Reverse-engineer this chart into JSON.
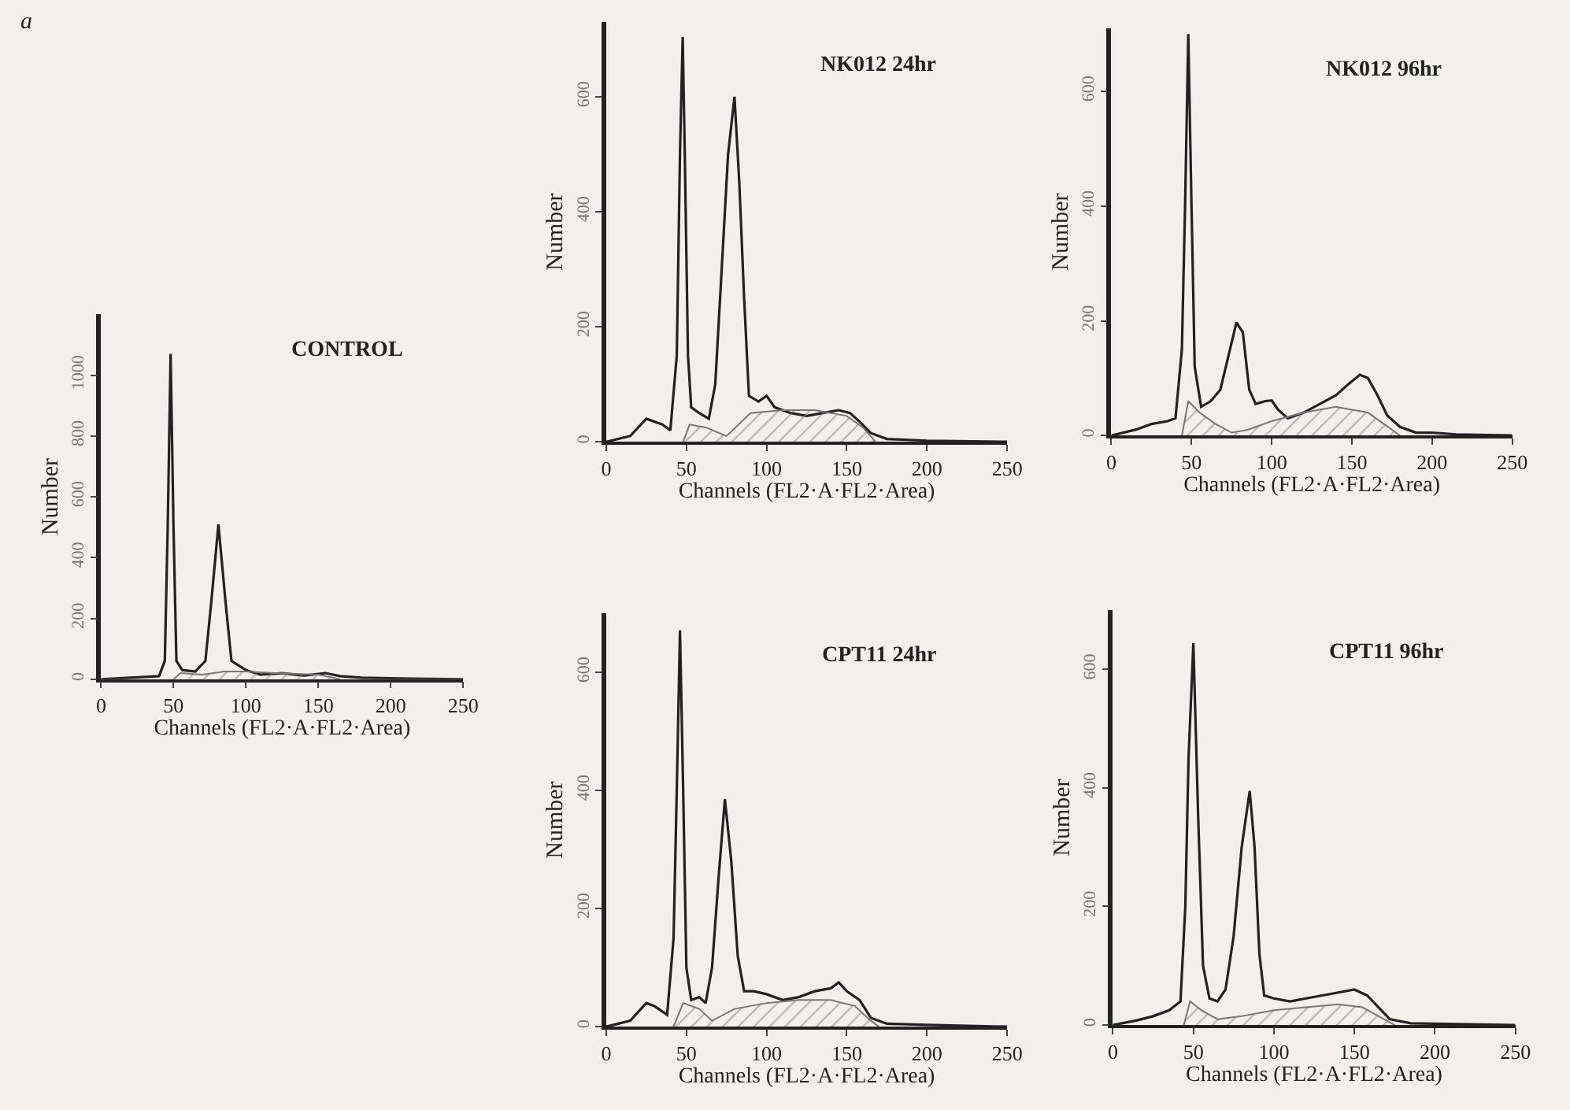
{
  "chart_data": [
    {
      "type": "line",
      "title": "CONTROL",
      "xlabel": "Channels (FL2·A·FL2·Area)",
      "ylabel": "Number",
      "annotations": [
        "a"
      ],
      "xlim": [
        0,
        250
      ],
      "xticks": [
        0,
        50,
        100,
        150,
        200,
        250
      ],
      "ylim": [
        0,
        1200
      ],
      "yticks": [
        0,
        200,
        400,
        600,
        800,
        1000
      ],
      "grid": false,
      "marker": "none",
      "line_style": "solid",
      "series": [
        {
          "color": "#222222",
          "x": [
            0,
            20,
            40,
            44,
            46,
            48,
            50,
            52,
            56,
            65,
            72,
            76,
            81,
            86,
            90,
            95,
            100,
            110,
            125,
            140,
            155,
            165,
            180,
            200,
            250
          ],
          "values": [
            0,
            5,
            10,
            60,
            500,
            1070,
            500,
            60,
            30,
            25,
            60,
            250,
            509,
            250,
            60,
            45,
            30,
            15,
            20,
            12,
            20,
            10,
            5,
            3,
            0
          ]
        },
        {
          "type": "area",
          "color": "#777777",
          "x": [
            50,
            55,
            70,
            85,
            100,
            120,
            150,
            165
          ],
          "values": [
            0,
            20,
            15,
            25,
            25,
            20,
            15,
            0
          ]
        }
      ]
    },
    {
      "type": "line",
      "title": "NK012 24hr",
      "xlabel": "Channels (FL2·A·FL2·Area)",
      "ylabel": "Number",
      "xlim": [
        0,
        250
      ],
      "xticks": [
        0,
        50,
        100,
        150,
        200,
        250
      ],
      "ylim": [
        0,
        730
      ],
      "yticks": [
        0,
        200,
        400,
        600
      ],
      "grid": false,
      "marker": "none",
      "line_style": "solid",
      "series": [
        {
          "color": "#222222",
          "x": [
            0,
            15,
            25,
            35,
            40,
            44,
            46,
            47.7,
            49,
            51,
            53,
            58,
            64,
            68,
            72,
            76,
            80,
            83,
            86,
            89,
            95,
            100,
            105,
            115,
            125,
            135,
            145,
            152,
            158,
            165,
            175,
            200,
            250
          ],
          "values": [
            0,
            10,
            40,
            30,
            20,
            150,
            500,
            704,
            500,
            150,
            60,
            50,
            40,
            100,
            300,
            500,
            600,
            450,
            250,
            80,
            70,
            80,
            60,
            50,
            45,
            50,
            55,
            50,
            35,
            15,
            5,
            2,
            0
          ]
        },
        {
          "type": "area",
          "color": "#777777",
          "x": [
            48,
            52,
            62,
            75,
            90,
            110,
            130,
            150,
            160,
            168
          ],
          "values": [
            0,
            30,
            25,
            10,
            50,
            55,
            55,
            45,
            25,
            0
          ]
        }
      ]
    },
    {
      "type": "line",
      "title": "NK012 96hr",
      "xlabel": "Channels (FL2·A·FL2·Area)",
      "ylabel": "Number",
      "xlim": [
        0,
        250
      ],
      "xticks": [
        0,
        50,
        100,
        150,
        200,
        250
      ],
      "ylim": [
        0,
        710
      ],
      "yticks": [
        0,
        200,
        400,
        600
      ],
      "grid": false,
      "marker": "none",
      "line_style": "solid",
      "series": [
        {
          "color": "#222222",
          "x": [
            0,
            15,
            25,
            35,
            40,
            44,
            46,
            48,
            50,
            52,
            56,
            62,
            68,
            74,
            78,
            82,
            86,
            90,
            96,
            100,
            104,
            110,
            120,
            130,
            140,
            148,
            155,
            160,
            166,
            172,
            180,
            190,
            200,
            215,
            250
          ],
          "values": [
            0,
            10,
            20,
            25,
            30,
            150,
            400,
            700,
            400,
            120,
            50,
            60,
            80,
            150,
            197,
            180,
            80,
            55,
            60,
            61,
            45,
            30,
            40,
            55,
            70,
            90,
            106,
            100,
            70,
            35,
            15,
            5,
            5,
            2,
            0
          ]
        },
        {
          "type": "area",
          "color": "#777777",
          "x": [
            44,
            48,
            55,
            65,
            75,
            85,
            100,
            120,
            140,
            150,
            160,
            170,
            180
          ],
          "values": [
            0,
            60,
            40,
            20,
            5,
            10,
            25,
            40,
            50,
            45,
            40,
            20,
            0
          ]
        }
      ]
    },
    {
      "type": "line",
      "title": "CPT11 24hr",
      "xlabel": "Channels (FL2·A·FL2·Area)",
      "ylabel": "Number",
      "xlim": [
        0,
        250
      ],
      "xticks": [
        0,
        50,
        100,
        150,
        200,
        250
      ],
      "ylim": [
        0,
        700
      ],
      "yticks": [
        0,
        200,
        400,
        600
      ],
      "grid": false,
      "marker": "none",
      "line_style": "solid",
      "series": [
        {
          "color": "#222222",
          "x": [
            0,
            15,
            25,
            30,
            38,
            42,
            44,
            46,
            48,
            50,
            53,
            58,
            62,
            66,
            70,
            74,
            78,
            82,
            86,
            92,
            100,
            110,
            120,
            130,
            140,
            145,
            150,
            158,
            165,
            175,
            200,
            250
          ],
          "values": [
            0,
            10,
            40,
            35,
            20,
            150,
            400,
            671,
            400,
            100,
            45,
            50,
            40,
            100,
            250,
            385,
            280,
            120,
            60,
            60,
            55,
            45,
            50,
            60,
            65,
            75,
            60,
            45,
            15,
            5,
            3,
            0
          ]
        },
        {
          "type": "area",
          "color": "#777777",
          "x": [
            42,
            48,
            58,
            66,
            80,
            100,
            120,
            140,
            155,
            165,
            170
          ],
          "values": [
            0,
            40,
            30,
            10,
            30,
            40,
            45,
            45,
            35,
            10,
            0
          ]
        }
      ]
    },
    {
      "type": "line",
      "title": "CPT11 96hr",
      "xlabel": "Channels (FL2·A·FL2·Area)",
      "ylabel": "Number",
      "xlim": [
        0,
        250
      ],
      "xticks": [
        0,
        50,
        100,
        150,
        200,
        250
      ],
      "ylim": [
        0,
        700
      ],
      "yticks": [
        0,
        200,
        400,
        600
      ],
      "grid": false,
      "marker": "none",
      "line_style": "solid",
      "series": [
        {
          "color": "#222222",
          "x": [
            0,
            15,
            25,
            35,
            42,
            45,
            47,
            50,
            53,
            56,
            60,
            65,
            70,
            75,
            80,
            85,
            88,
            91,
            94,
            100,
            110,
            120,
            130,
            140,
            150,
            158,
            165,
            172,
            185,
            250
          ],
          "values": [
            0,
            8,
            15,
            25,
            40,
            200,
            450,
            644,
            350,
            100,
            45,
            40,
            60,
            150,
            300,
            395,
            300,
            120,
            50,
            45,
            40,
            45,
            50,
            55,
            60,
            50,
            30,
            10,
            3,
            0
          ]
        },
        {
          "type": "area",
          "color": "#777777",
          "x": [
            44,
            48,
            55,
            65,
            80,
            100,
            120,
            140,
            155,
            165,
            175
          ],
          "values": [
            0,
            40,
            25,
            10,
            15,
            25,
            30,
            35,
            30,
            15,
            0
          ]
        }
      ]
    }
  ]
}
